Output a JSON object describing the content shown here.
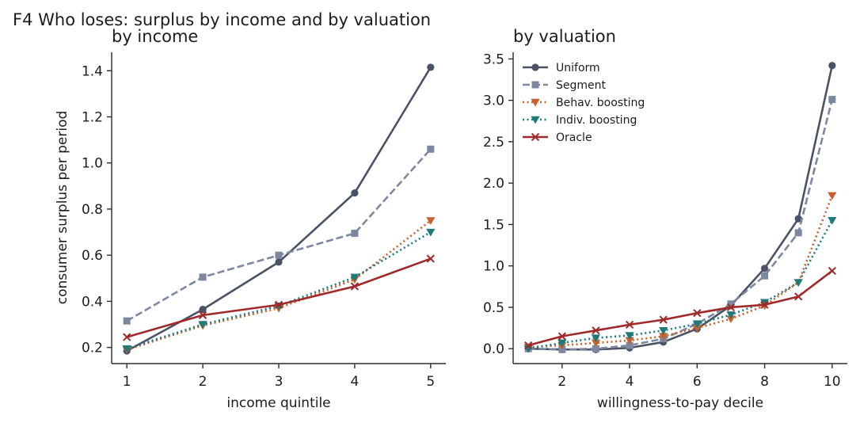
{
  "suptitle": "F4  Who loses: surplus by income and by valuation",
  "colors": {
    "Uniform": "#4a5365",
    "Segment": "#7d879f",
    "Behav. boosting": "#c8612b",
    "Indiv. boosting": "#1e7a7a",
    "Oracle": "#a02a2a"
  },
  "chart_data": [
    {
      "type": "line",
      "title": "by income",
      "xlabel": "income quintile",
      "ylabel": "consumer surplus per period",
      "x": [
        1,
        2,
        3,
        4,
        5
      ],
      "xlim": [
        0.8,
        5.2
      ],
      "ylim": [
        0.13,
        1.48
      ],
      "xticks": [
        1,
        2,
        3,
        4,
        5
      ],
      "yticks": [
        "0.2",
        "0.4",
        "0.6",
        "0.8",
        "1.0",
        "1.2",
        "1.4"
      ],
      "grid": false,
      "legend": "none",
      "series": [
        {
          "name": "Uniform",
          "style": "solid",
          "marker": "circle",
          "values": [
            0.185,
            0.365,
            0.57,
            0.87,
            1.415
          ]
        },
        {
          "name": "Segment",
          "style": "dashed",
          "marker": "square",
          "values": [
            0.315,
            0.505,
            0.6,
            0.695,
            1.06
          ]
        },
        {
          "name": "Behav. boosting",
          "style": "dotted",
          "marker": "triangle-down",
          "values": [
            0.19,
            0.295,
            0.37,
            0.495,
            0.75
          ]
        },
        {
          "name": "Indiv. boosting",
          "style": "dotted",
          "marker": "triangle-down",
          "values": [
            0.195,
            0.3,
            0.38,
            0.505,
            0.7
          ]
        },
        {
          "name": "Oracle",
          "style": "solid",
          "marker": "x",
          "values": [
            0.245,
            0.34,
            0.385,
            0.465,
            0.585
          ]
        }
      ]
    },
    {
      "type": "line",
      "title": "by valuation",
      "xlabel": "willingness-to-pay decile",
      "ylabel": "",
      "x": [
        1,
        2,
        3,
        4,
        5,
        6,
        7,
        8,
        9,
        10
      ],
      "xlim": [
        0.55,
        10.45
      ],
      "ylim": [
        -0.18,
        3.58
      ],
      "xticks": [
        2,
        4,
        6,
        8,
        10
      ],
      "yticks": [
        "0.0",
        "0.5",
        "1.0",
        "1.5",
        "2.0",
        "2.5",
        "3.0",
        "3.5"
      ],
      "grid": false,
      "legend": "upper-left",
      "series": [
        {
          "name": "Uniform",
          "style": "solid",
          "marker": "circle",
          "values": [
            0.0,
            -0.01,
            -0.01,
            0.01,
            0.08,
            0.24,
            0.52,
            0.97,
            1.57,
            3.42
          ]
        },
        {
          "name": "Segment",
          "style": "dashed",
          "marker": "square",
          "values": [
            0.0,
            -0.01,
            0.0,
            0.04,
            0.12,
            0.3,
            0.54,
            0.88,
            1.4,
            3.01
          ]
        },
        {
          "name": "Behav. boosting",
          "style": "dotted",
          "marker": "triangle-down",
          "values": [
            0.02,
            0.04,
            0.07,
            0.1,
            0.15,
            0.25,
            0.36,
            0.52,
            0.8,
            1.85
          ]
        },
        {
          "name": "Indiv. boosting",
          "style": "dotted",
          "marker": "triangle-down",
          "values": [
            0.0,
            0.07,
            0.13,
            0.16,
            0.22,
            0.3,
            0.41,
            0.56,
            0.8,
            1.55
          ]
        },
        {
          "name": "Oracle",
          "style": "solid",
          "marker": "x",
          "values": [
            0.04,
            0.15,
            0.22,
            0.29,
            0.35,
            0.43,
            0.5,
            0.53,
            0.63,
            0.94
          ]
        }
      ]
    }
  ]
}
